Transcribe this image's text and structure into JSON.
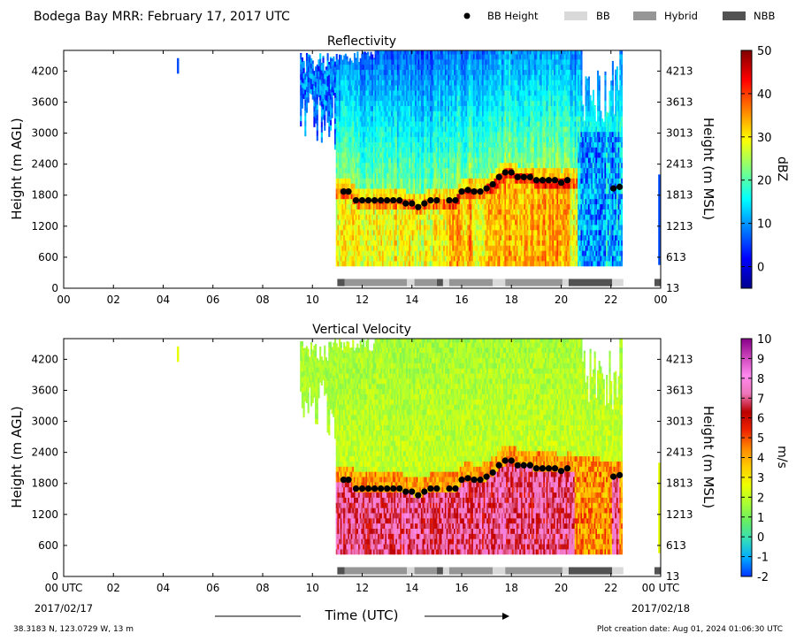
{
  "header": {
    "title": "Bodega Bay MRR:  February 17, 2017 UTC",
    "legend": [
      {
        "label": "BB Height",
        "symbol": "dot",
        "color": "#000000"
      },
      {
        "label": "BB",
        "symbol": "rect",
        "color": "#d9d9d9"
      },
      {
        "label": "Hybrid",
        "symbol": "rect",
        "color": "#969696"
      },
      {
        "label": "NBB",
        "symbol": "rect",
        "color": "#525252"
      }
    ]
  },
  "footer": {
    "xlabel": "Time (UTC)",
    "location": "38.3183 N, 123.0729 W, 13 m",
    "creation": "Plot creation date: Aug 01, 2024 01:06:30 UTC",
    "start_date": "2017/02/17",
    "end_date": "2017/02/18"
  },
  "chart_data": [
    {
      "type": "heatmap",
      "title": "Reflectivity",
      "ylabel": "Height (m AGL)",
      "ylabel_right": "Height (m MSL)",
      "xlim": [
        0,
        24
      ],
      "ylim": [
        0,
        4600
      ],
      "x_ticks": [
        "00",
        "02",
        "04",
        "06",
        "08",
        "10",
        "12",
        "14",
        "16",
        "18",
        "20",
        "22",
        "00"
      ],
      "y_ticks": [
        0,
        600,
        1200,
        1800,
        2400,
        3000,
        3600,
        4200
      ],
      "y_ticks_right": [
        "13",
        "613",
        "1213",
        "1813",
        "2413",
        "3013",
        "3613",
        "4213"
      ],
      "colorbar": {
        "label": "dBZ",
        "min": -5,
        "max": 50,
        "ticks": [
          "0",
          "10",
          "20",
          "30",
          "40",
          "50"
        ],
        "tick_values": [
          0,
          10,
          20,
          30,
          40,
          50
        ],
        "colors": [
          "#00008f",
          "#0000ff",
          "#0080ff",
          "#00ffff",
          "#80ff80",
          "#ffff00",
          "#ff8000",
          "#ff0000",
          "#800000"
        ]
      }
    },
    {
      "type": "heatmap",
      "title": "Vertical Velocity",
      "ylabel": "Height (m AGL)",
      "ylabel_right": "Height (m MSL)",
      "xlim": [
        0,
        24
      ],
      "ylim": [
        0,
        4600
      ],
      "x_ticks": [
        "00 UTC",
        "02",
        "04",
        "06",
        "08",
        "10",
        "12",
        "14",
        "16",
        "18",
        "20",
        "22",
        "00 UTC"
      ],
      "y_ticks": [
        0,
        600,
        1200,
        1800,
        2400,
        3000,
        3600,
        4200
      ],
      "y_ticks_right": [
        "13",
        "613",
        "1213",
        "1813",
        "2413",
        "3013",
        "3613",
        "4213"
      ],
      "colorbar": {
        "label": "m/s",
        "min": -2,
        "max": 10,
        "ticks": [
          "-2",
          "-1",
          "0",
          "1",
          "2",
          "3",
          "4",
          "5",
          "6",
          "7",
          "8",
          "9",
          "10"
        ],
        "tick_values": [
          -2,
          -1,
          0,
          1,
          2,
          3,
          4,
          5,
          6,
          7,
          8,
          9,
          10
        ],
        "colors": [
          "#0033ff",
          "#00aaff",
          "#33ddbb",
          "#66ee66",
          "#aaff33",
          "#eeff00",
          "#ffcc00",
          "#ff8800",
          "#ee2200",
          "#bb0000",
          "#ee77bb",
          "#ff88ee",
          "#cc44bb",
          "#880088"
        ]
      }
    }
  ],
  "bb_height": {
    "time": [
      11.25,
      11.45,
      11.75,
      12.0,
      12.25,
      12.5,
      12.75,
      13.0,
      13.25,
      13.5,
      13.75,
      14.0,
      14.25,
      14.5,
      14.75,
      15.0,
      15.5,
      15.75,
      16.0,
      16.25,
      16.5,
      16.75,
      17.0,
      17.25,
      17.5,
      17.75,
      18.0,
      18.25,
      18.5,
      18.75,
      19.0,
      19.25,
      19.5,
      19.75,
      20.0,
      20.25,
      22.1,
      22.35
    ],
    "height": [
      1870,
      1870,
      1700,
      1700,
      1700,
      1700,
      1700,
      1700,
      1700,
      1700,
      1640,
      1640,
      1570,
      1640,
      1700,
      1700,
      1700,
      1700,
      1870,
      1900,
      1870,
      1870,
      1930,
      2010,
      2150,
      2240,
      2240,
      2150,
      2150,
      2150,
      2090,
      2090,
      2090,
      2090,
      2040,
      2090,
      1930,
      1960
    ]
  },
  "classification": [
    {
      "start": 11.0,
      "end": 11.3,
      "class": "NBB"
    },
    {
      "start": 11.3,
      "end": 13.8,
      "class": "Hybrid"
    },
    {
      "start": 13.8,
      "end": 14.1,
      "class": "BB"
    },
    {
      "start": 14.1,
      "end": 15.0,
      "class": "Hybrid"
    },
    {
      "start": 15.0,
      "end": 15.25,
      "class": "NBB"
    },
    {
      "start": 15.25,
      "end": 15.5,
      "class": "BB"
    },
    {
      "start": 15.5,
      "end": 17.25,
      "class": "Hybrid"
    },
    {
      "start": 17.25,
      "end": 17.75,
      "class": "BB"
    },
    {
      "start": 17.75,
      "end": 20.05,
      "class": "Hybrid"
    },
    {
      "start": 20.05,
      "end": 20.3,
      "class": "BB"
    },
    {
      "start": 20.3,
      "end": 22.05,
      "class": "NBB"
    },
    {
      "start": 22.05,
      "end": 22.5,
      "class": "BB"
    },
    {
      "start": 23.75,
      "end": 24.0,
      "class": "NBB"
    }
  ]
}
